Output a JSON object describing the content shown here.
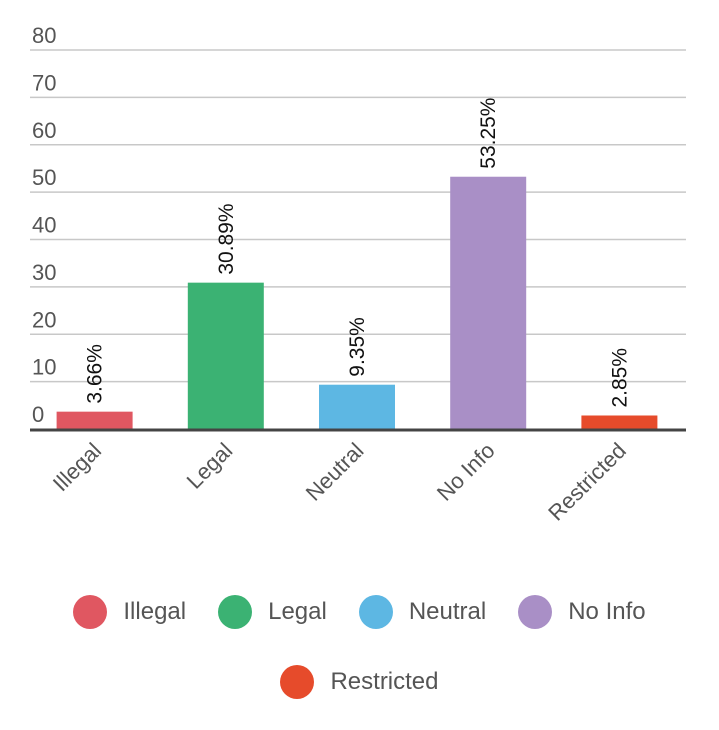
{
  "chart_data": {
    "type": "bar",
    "categories": [
      "Illegal",
      "Legal",
      "Neutral",
      "No Info",
      "Restricted"
    ],
    "values": [
      3.66,
      30.89,
      9.35,
      53.25,
      2.85
    ],
    "data_labels": [
      "3.66%",
      "30.89%",
      "9.35%",
      "53.25%",
      "2.85%"
    ],
    "colors": [
      "#e05761",
      "#3bb273",
      "#5db7e3",
      "#a98fc6",
      "#e64b2b"
    ],
    "ylim": [
      0,
      80
    ],
    "yticks": [
      "0",
      "10",
      "20",
      "30",
      "40",
      "50",
      "60",
      "70",
      "80"
    ],
    "grid": true,
    "legend_placement": "bottom"
  },
  "legend": {
    "rows": [
      [
        {
          "label": "Illegal",
          "color": "#e05761"
        },
        {
          "label": "Legal",
          "color": "#3bb273"
        },
        {
          "label": "Neutral",
          "color": "#5db7e3"
        },
        {
          "label": "No Info",
          "color": "#a98fc6"
        }
      ],
      [
        {
          "label": "Restricted",
          "color": "#e64b2b"
        }
      ]
    ]
  }
}
